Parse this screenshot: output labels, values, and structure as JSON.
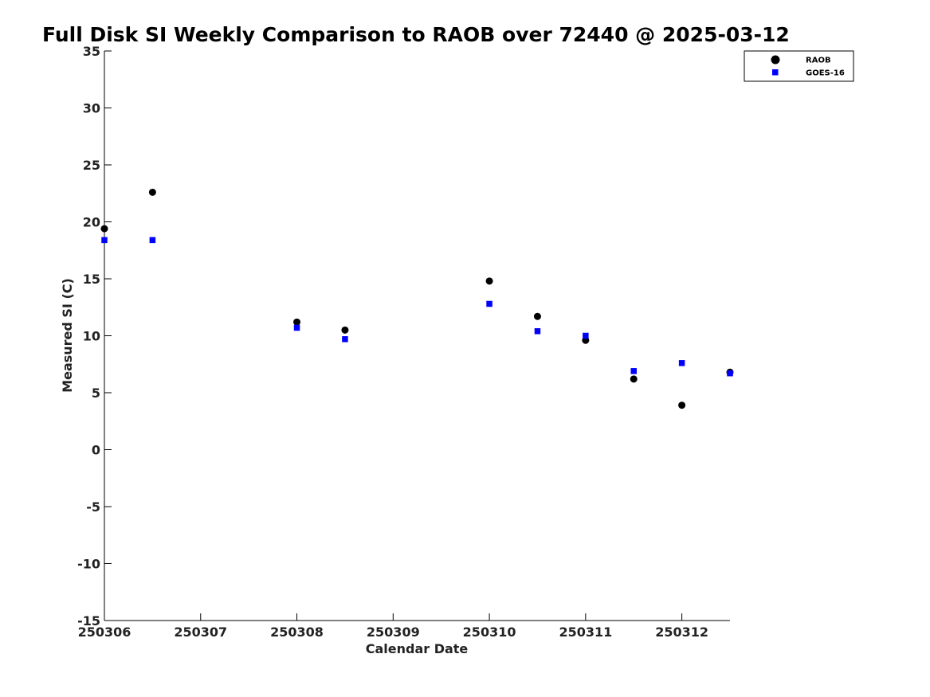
{
  "chart_data": {
    "type": "scatter",
    "title": "Full Disk SI Weekly Comparison to RAOB over 72440 @ 2025-03-12",
    "xlabel": "Calendar Date",
    "ylabel": "Measured SI (C)",
    "xlim": [
      "2025-03-06",
      "2025-03-12 12:00"
    ],
    "ylim": [
      -15,
      35
    ],
    "xticks": [
      "2025-03-06",
      "2025-03-07",
      "2025-03-08",
      "2025-03-09",
      "2025-03-10",
      "2025-03-11",
      "2025-03-12"
    ],
    "x_tick_labels": [
      "250306",
      "250307",
      "250308",
      "250309",
      "250310",
      "250311",
      "250312"
    ],
    "yticks": [
      35,
      30,
      25,
      20,
      15,
      10,
      5,
      0,
      -5,
      -10,
      -15
    ],
    "grid": false,
    "legend_position": "top-right",
    "series": [
      {
        "name": "RAOB",
        "marker": "circle",
        "color": "#000000",
        "points": [
          {
            "x": "2025-03-06 00:00",
            "y": 19.4
          },
          {
            "x": "2025-03-06 12:00",
            "y": 22.6
          },
          {
            "x": "2025-03-08 00:00",
            "y": 11.2
          },
          {
            "x": "2025-03-08 12:00",
            "y": 10.5
          },
          {
            "x": "2025-03-10 00:00",
            "y": 14.8
          },
          {
            "x": "2025-03-10 12:00",
            "y": 11.7
          },
          {
            "x": "2025-03-11 00:00",
            "y": 9.6
          },
          {
            "x": "2025-03-11 12:00",
            "y": 6.2
          },
          {
            "x": "2025-03-12 00:00",
            "y": 3.9
          },
          {
            "x": "2025-03-12 12:00",
            "y": 6.8
          }
        ]
      },
      {
        "name": "GOES-16",
        "marker": "square",
        "color": "#0000ff",
        "points": [
          {
            "x": "2025-03-06 00:00",
            "y": 18.4
          },
          {
            "x": "2025-03-06 12:00",
            "y": 18.4
          },
          {
            "x": "2025-03-08 00:00",
            "y": 10.7
          },
          {
            "x": "2025-03-08 12:00",
            "y": 9.7
          },
          {
            "x": "2025-03-10 00:00",
            "y": 12.8
          },
          {
            "x": "2025-03-10 12:00",
            "y": 10.4
          },
          {
            "x": "2025-03-11 00:00",
            "y": 10.0
          },
          {
            "x": "2025-03-11 12:00",
            "y": 6.9
          },
          {
            "x": "2025-03-12 00:00",
            "y": 7.6
          },
          {
            "x": "2025-03-12 12:00",
            "y": 6.7
          }
        ]
      }
    ]
  }
}
